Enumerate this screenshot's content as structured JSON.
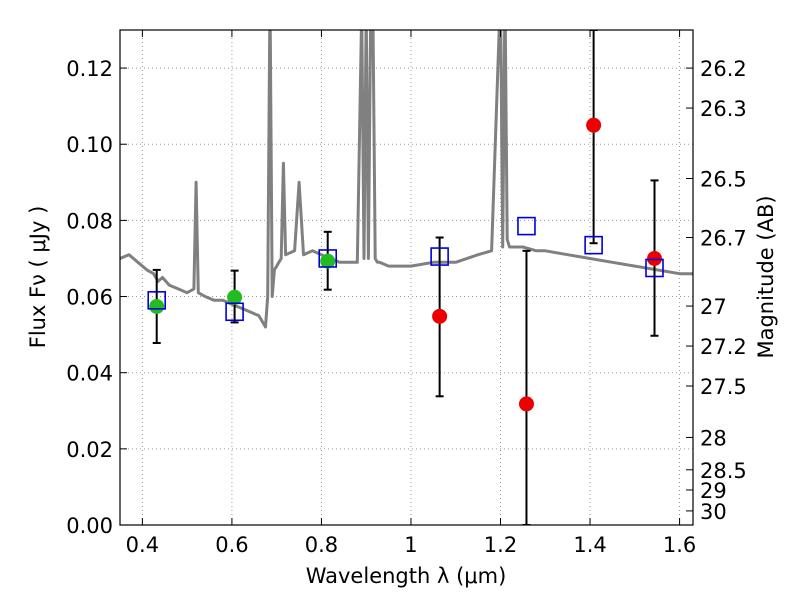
{
  "chart_data": {
    "type": "scatter",
    "xlabel": "Wavelength  λ (μm)",
    "ylabel": "Flux  Fν  ( μJy )",
    "ylabel_right": "Magnitude (AB)",
    "xlim": [
      0.35,
      1.63
    ],
    "ylim": [
      0.0,
      0.13
    ],
    "grid": true,
    "x_ticks": [
      {
        "value": 0.4,
        "label": "0.4"
      },
      {
        "value": 0.6,
        "label": "0.6"
      },
      {
        "value": 0.8,
        "label": "0.8"
      },
      {
        "value": 1.0,
        "label": "1"
      },
      {
        "value": 1.2,
        "label": "1.2"
      },
      {
        "value": 1.4,
        "label": "1.4"
      },
      {
        "value": 1.6,
        "label": "1.6"
      }
    ],
    "y_ticks": [
      {
        "value": 0.0,
        "label": "0.00"
      },
      {
        "value": 0.02,
        "label": "0.02"
      },
      {
        "value": 0.04,
        "label": "0.04"
      },
      {
        "value": 0.06,
        "label": "0.06"
      },
      {
        "value": 0.08,
        "label": "0.08"
      },
      {
        "value": 0.1,
        "label": "0.10"
      },
      {
        "value": 0.12,
        "label": "0.12"
      }
    ],
    "mag_ticks": [
      {
        "flux": 0.12,
        "label": "26.2"
      },
      {
        "flux": 0.1095,
        "label": "26.3"
      },
      {
        "flux": 0.091,
        "label": "26.5"
      },
      {
        "flux": 0.0755,
        "label": "26.7"
      },
      {
        "flux": 0.0575,
        "label": "27"
      },
      {
        "flux": 0.047,
        "label": "27.2"
      },
      {
        "flux": 0.0365,
        "label": "27.5"
      },
      {
        "flux": 0.023,
        "label": "28"
      },
      {
        "flux": 0.0145,
        "label": "28.5"
      },
      {
        "flux": 0.0092,
        "label": "29"
      },
      {
        "flux": 0.0037,
        "label": "30"
      }
    ],
    "colors": {
      "model": "#808080",
      "optical_points": "#22bb22",
      "nir_points": "#ee0000",
      "model_photometry": "#0000dd",
      "errorbar": "#000000",
      "grid": "#9a9a9a"
    },
    "model_spectrum": {
      "x": [
        0.35,
        0.37,
        0.39,
        0.41,
        0.425,
        0.435,
        0.445,
        0.46,
        0.48,
        0.5,
        0.515,
        0.52,
        0.525,
        0.54,
        0.56,
        0.58,
        0.6,
        0.62,
        0.64,
        0.66,
        0.675,
        0.68,
        0.685,
        0.69,
        0.695,
        0.7,
        0.705,
        0.71,
        0.715,
        0.72,
        0.74,
        0.75,
        0.76,
        0.78,
        0.8,
        0.82,
        0.84,
        0.86,
        0.88,
        0.89,
        0.895,
        0.9,
        0.905,
        0.91,
        0.915,
        0.92,
        0.925,
        0.93,
        0.95,
        0.97,
        1.0,
        1.05,
        1.1,
        1.15,
        1.18,
        1.2,
        1.205,
        1.21,
        1.215,
        1.22,
        1.25,
        1.28,
        1.3,
        1.35,
        1.4,
        1.45,
        1.5,
        1.55,
        1.6,
        1.63
      ],
      "y": [
        0.07,
        0.071,
        0.069,
        0.067,
        0.066,
        0.064,
        0.065,
        0.063,
        0.062,
        0.061,
        0.062,
        0.09,
        0.061,
        0.06,
        0.059,
        0.059,
        0.058,
        0.057,
        0.056,
        0.055,
        0.052,
        0.06,
        0.14,
        0.06,
        0.067,
        0.068,
        0.069,
        0.07,
        0.095,
        0.071,
        0.072,
        0.09,
        0.071,
        0.072,
        0.071,
        0.07,
        0.069,
        0.069,
        0.069,
        0.135,
        0.07,
        0.135,
        0.07,
        0.135,
        0.135,
        0.07,
        0.069,
        0.069,
        0.068,
        0.068,
        0.068,
        0.069,
        0.069,
        0.071,
        0.072,
        0.14,
        0.073,
        0.14,
        0.075,
        0.073,
        0.073,
        0.072,
        0.072,
        0.071,
        0.07,
        0.069,
        0.068,
        0.067,
        0.066,
        0.066
      ]
    },
    "series": [
      {
        "marker": "circle",
        "points": [
          {
            "x": 0.432,
            "y": 0.0574,
            "err_lo": 0.0478,
            "err_hi": 0.067
          },
          {
            "x": 0.606,
            "y": 0.0598,
            "err_lo": 0.0532,
            "err_hi": 0.0668
          },
          {
            "x": 0.814,
            "y": 0.0693,
            "err_lo": 0.0618,
            "err_hi": 0.077
          }
        ],
        "color_key": "optical_points"
      },
      {
        "marker": "circle",
        "points": [
          {
            "x": 1.064,
            "y": 0.0548,
            "err_lo": 0.0338,
            "err_hi": 0.0755
          },
          {
            "x": 1.258,
            "y": 0.0318,
            "err_lo": 0.0,
            "err_hi": 0.072
          },
          {
            "x": 1.408,
            "y": 0.105,
            "err_lo": 0.074,
            "err_hi": 0.13
          },
          {
            "x": 1.544,
            "y": 0.07,
            "err_lo": 0.0497,
            "err_hi": 0.0905
          }
        ],
        "color_key": "nir_points"
      },
      {
        "marker": "square",
        "points": [
          {
            "x": 0.432,
            "y": 0.059
          },
          {
            "x": 0.606,
            "y": 0.056
          },
          {
            "x": 0.814,
            "y": 0.07
          },
          {
            "x": 1.064,
            "y": 0.0705
          },
          {
            "x": 1.258,
            "y": 0.0785
          },
          {
            "x": 1.408,
            "y": 0.0735
          },
          {
            "x": 1.544,
            "y": 0.0675
          }
        ],
        "color_key": "model_photometry"
      }
    ]
  }
}
